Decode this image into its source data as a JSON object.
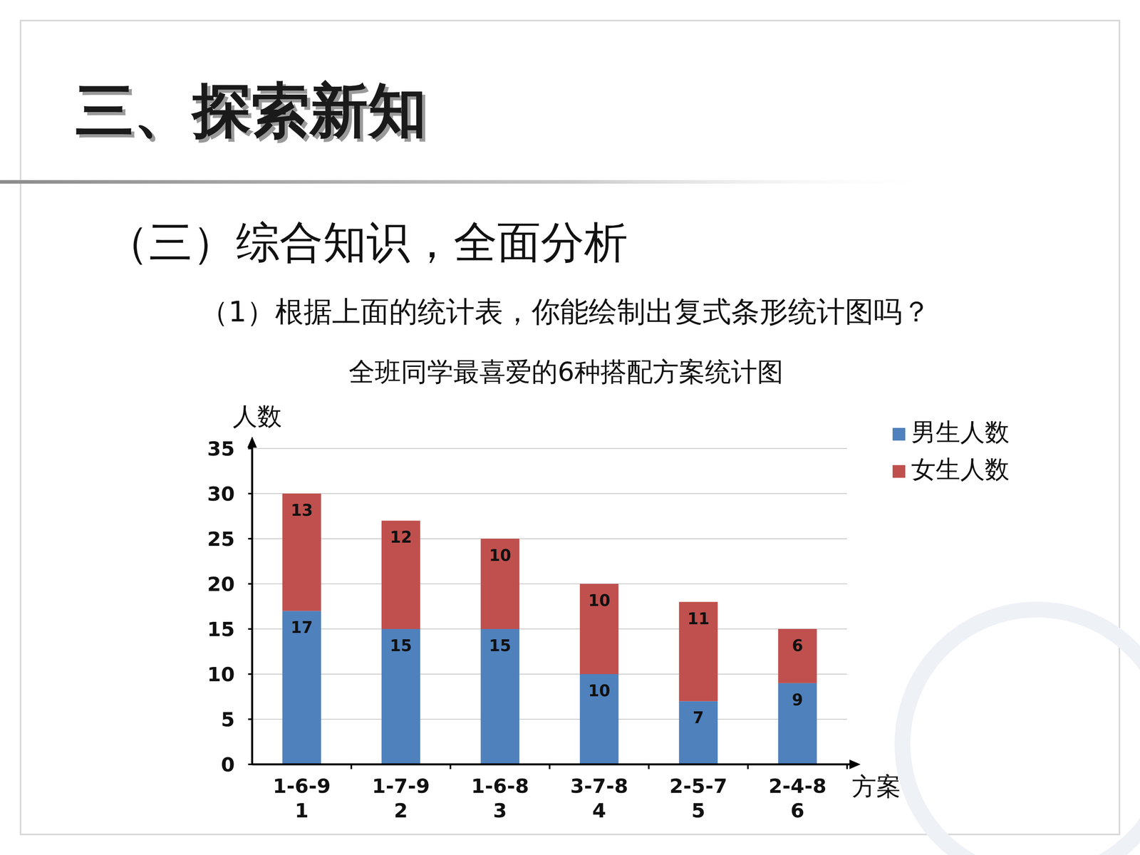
{
  "header": {
    "section": "三、探索新知",
    "subtitle": "（三）综合知识，全面分析",
    "question": "（1）根据上面的统计表，你能绘制出复式条形统计图吗？"
  },
  "chart_data": {
    "type": "bar",
    "title": "全班同学最喜爱的6种搭配方案统计图",
    "y_label": "人数",
    "x_label": "方案",
    "categories": [
      "1-6-9\n1",
      "1-7-9\n2",
      "1-6-8\n3",
      "3-7-8\n4",
      "2-5-7\n5",
      "2-4-8\n6"
    ],
    "series": [
      {
        "name": "男生人数",
        "color": "#4f81bd",
        "values": [
          17,
          15,
          15,
          10,
          7,
          9
        ]
      },
      {
        "name": "女生人数",
        "color": "#c0504d",
        "values": [
          13,
          12,
          10,
          10,
          11,
          6
        ]
      }
    ],
    "ylim": [
      0,
      35
    ],
    "yticks": [
      0,
      5,
      10,
      15,
      20,
      25,
      30,
      35
    ],
    "grid": true,
    "stacked": true,
    "data_labels": true,
    "legend": "top-right"
  }
}
